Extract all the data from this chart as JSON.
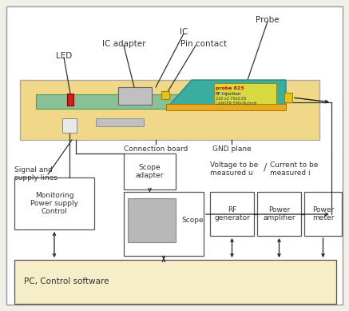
{
  "bg_color": "#f0f0e8",
  "outer_bg": "#ffffff",
  "board_bg": "#f0d888",
  "pcb_color": "#88c098",
  "probe_color": "#3aada0",
  "probe_label_bg": "#d8d840",
  "scope_gray": "#b8b8b8",
  "box_color": "#ffffff",
  "pc_bg": "#f5eec8",
  "arrow_color": "#222222",
  "line_color": "#333333",
  "labels": {
    "probe": "Probe",
    "ic": "IC",
    "ic_adapter": "IC adapter",
    "pin_contact": "Pin contact",
    "led": "LED",
    "connection_board": "Connection board",
    "gnd_plane": "GND plane",
    "signal_supply": "Signal and\nsupply lines",
    "scope_adapter": "Scope\nadapter",
    "monitoring": "Monitoring\nPower supply\nControl",
    "scope": "Scope",
    "rf_generator": "RF\ngenerator",
    "power_amplifier": "Power\namplifier",
    "power_meter": "Power\nmeter",
    "pc": "PC, Control software",
    "voltage": "Voltage to be\nmeasured u",
    "current": "Current to be\nmeasured i"
  },
  "font_size": 7.5,
  "small_font": 6.5,
  "tiny_font": 4.5
}
